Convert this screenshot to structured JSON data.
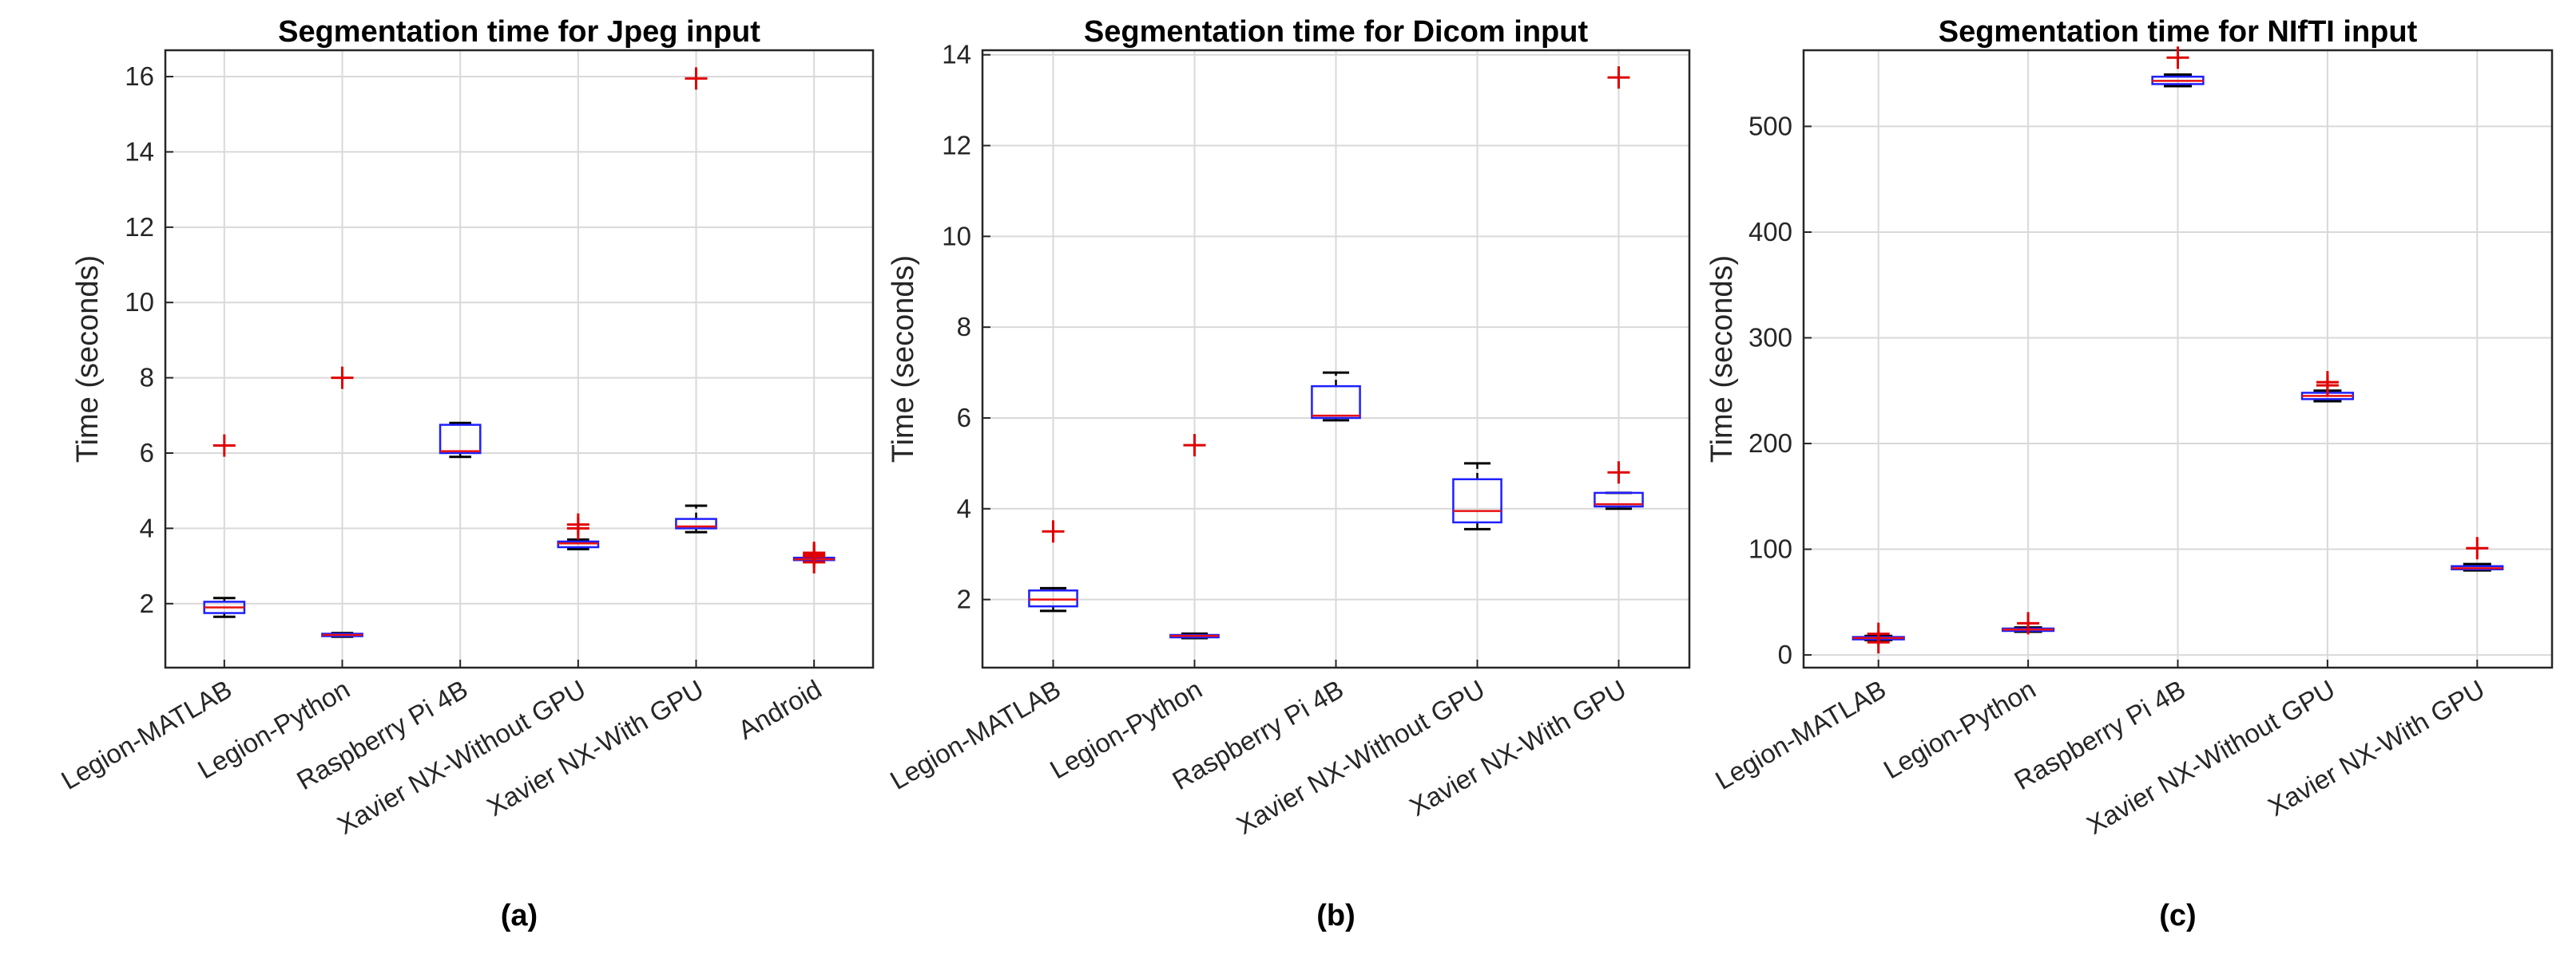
{
  "chart_data": [
    {
      "type": "box",
      "title": "Segmentation time for Jpeg input",
      "ylabel": "Time (seconds)",
      "caption": "(a)",
      "ylim": [
        0.3,
        16.7
      ],
      "yticks": [
        2,
        4,
        6,
        8,
        10,
        12,
        14,
        16
      ],
      "categories": [
        "Legion-MATLAB",
        "Legion-Python",
        "Raspberry Pi 4B",
        "Xavier NX-Without GPU",
        "Xavier NX-With GPU",
        "Android"
      ],
      "boxes": [
        {
          "wlo": 1.65,
          "q1": 1.75,
          "med": 1.9,
          "q3": 2.05,
          "whi": 2.15,
          "outliers": [
            6.2
          ]
        },
        {
          "wlo": 1.12,
          "q1": 1.14,
          "med": 1.17,
          "q3": 1.2,
          "whi": 1.22,
          "outliers": [
            8.0
          ]
        },
        {
          "wlo": 5.9,
          "q1": 6.0,
          "med": 6.05,
          "q3": 6.75,
          "whi": 6.8,
          "outliers": []
        },
        {
          "wlo": 3.45,
          "q1": 3.5,
          "med": 3.6,
          "q3": 3.65,
          "whi": 3.7,
          "outliers": [
            4.1,
            4.0
          ]
        },
        {
          "wlo": 3.9,
          "q1": 4.0,
          "med": 4.05,
          "q3": 4.25,
          "whi": 4.6,
          "outliers": [
            15.95
          ]
        },
        {
          "wlo": 3.12,
          "q1": 3.16,
          "med": 3.18,
          "q3": 3.22,
          "whi": 3.26,
          "outliers": [
            3.3,
            3.35,
            3.25,
            3.1
          ]
        }
      ]
    },
    {
      "type": "box",
      "title": "Segmentation time for Dicom input",
      "ylabel": "Time (seconds)",
      "caption": "(b)",
      "ylim": [
        0.5,
        14.1
      ],
      "yticks": [
        2,
        4,
        6,
        8,
        10,
        12,
        14
      ],
      "categories": [
        "Legion-MATLAB",
        "Legion-Python",
        "Raspberry Pi 4B",
        "Xavier NX-Without GPU",
        "Xavier NX-With GPU"
      ],
      "boxes": [
        {
          "wlo": 1.75,
          "q1": 1.85,
          "med": 2.0,
          "q3": 2.2,
          "whi": 2.25,
          "outliers": [
            3.5
          ]
        },
        {
          "wlo": 1.15,
          "q1": 1.17,
          "med": 1.2,
          "q3": 1.22,
          "whi": 1.25,
          "outliers": [
            5.4
          ]
        },
        {
          "wlo": 5.95,
          "q1": 6.0,
          "med": 6.05,
          "q3": 6.7,
          "whi": 7.0,
          "outliers": []
        },
        {
          "wlo": 3.55,
          "q1": 3.7,
          "med": 3.95,
          "q3": 4.65,
          "whi": 5.0,
          "outliers": []
        },
        {
          "wlo": 4.0,
          "q1": 4.05,
          "med": 4.1,
          "q3": 4.35,
          "whi": 4.35,
          "outliers": [
            4.8,
            13.5
          ]
        }
      ]
    },
    {
      "type": "box",
      "title": "Segmentation time for NIfTI input",
      "ylabel": "Time (seconds)",
      "caption": "(c)",
      "ylim": [
        -12,
        572
      ],
      "yticks": [
        0,
        100,
        200,
        300,
        400,
        500
      ],
      "categories": [
        "Legion-MATLAB",
        "Legion-Python",
        "Raspberry Pi 4B",
        "Xavier NX-Without GPU",
        "Xavier NX-With GPU"
      ],
      "boxes": [
        {
          "wlo": 14,
          "q1": 15,
          "med": 16,
          "q3": 17,
          "whi": 18,
          "outliers": [
            20,
            12
          ]
        },
        {
          "wlo": 22,
          "q1": 23,
          "med": 24,
          "q3": 25,
          "whi": 26,
          "outliers": [
            30
          ]
        },
        {
          "wlo": 538,
          "q1": 540,
          "med": 543,
          "q3": 547,
          "whi": 549,
          "outliers": [
            565
          ]
        },
        {
          "wlo": 240,
          "q1": 242,
          "med": 245,
          "q3": 248,
          "whi": 250,
          "outliers": [
            258,
            255
          ]
        },
        {
          "wlo": 80,
          "q1": 81,
          "med": 82,
          "q3": 84,
          "whi": 86,
          "outliers": [
            101
          ]
        }
      ]
    }
  ]
}
